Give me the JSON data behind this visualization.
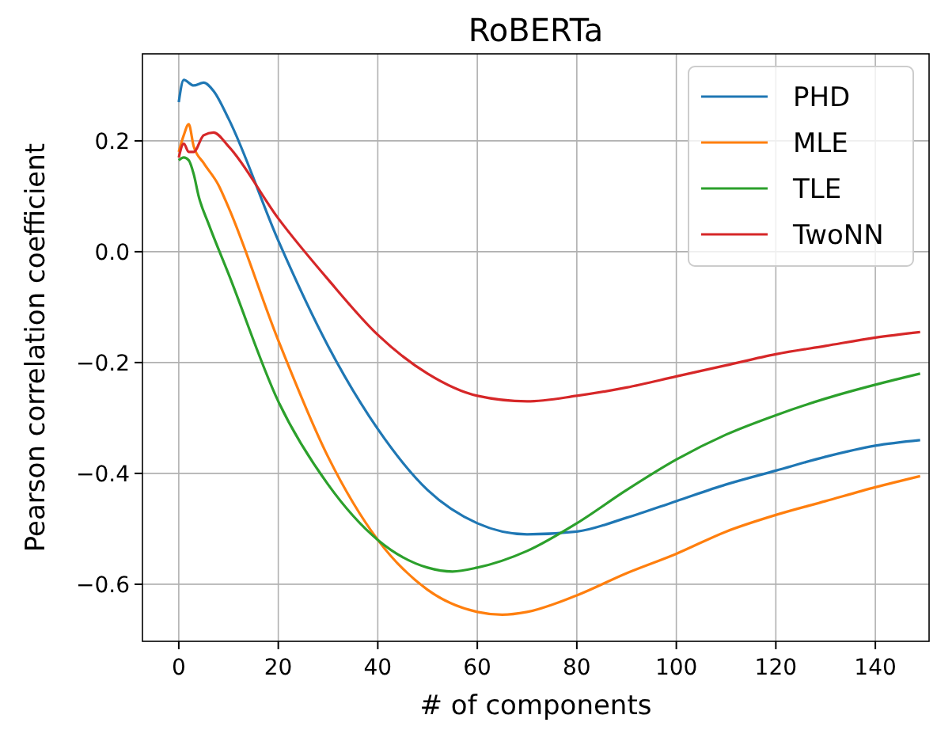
{
  "chart_data": {
    "type": "line",
    "title": "RoBERTa",
    "xlabel": "# of components",
    "ylabel": "Pearson correlation coefficient",
    "xlim": [
      -7.3,
      150.8
    ],
    "ylim": [
      -0.703,
      0.357
    ],
    "xticks": [
      0,
      20,
      40,
      60,
      80,
      100,
      120,
      140
    ],
    "yticks": [
      {
        "value": -0.6,
        "label": "−0.6"
      },
      {
        "value": -0.4,
        "label": "−0.4"
      },
      {
        "value": -0.2,
        "label": "−0.2"
      },
      {
        "value": 0,
        "label": "0.0"
      },
      {
        "value": 0.2,
        "label": "0.2"
      }
    ],
    "grid": true,
    "legend": "top right",
    "marker": "none",
    "line_style": "solid",
    "series": [
      {
        "name": "PHD",
        "color": "#1f77b4",
        "x": [
          0,
          1,
          3,
          5,
          7,
          10,
          20,
          30,
          40,
          50,
          60,
          70,
          80,
          90,
          100,
          110,
          120,
          130,
          140,
          149
        ],
        "values": [
          0.27,
          0.31,
          0.3,
          0.305,
          0.29,
          0.24,
          0.02,
          -0.17,
          -0.32,
          -0.43,
          -0.49,
          -0.51,
          -0.505,
          -0.48,
          -0.45,
          -0.42,
          -0.395,
          -0.37,
          -0.35,
          -0.34
        ]
      },
      {
        "name": "MLE",
        "color": "#ff7f0e",
        "x": [
          0,
          1,
          2,
          3,
          5,
          8,
          10,
          20,
          30,
          40,
          50,
          60,
          65,
          70,
          80,
          90,
          100,
          110,
          120,
          130,
          140,
          149
        ],
        "values": [
          0.18,
          0.21,
          0.23,
          0.19,
          0.16,
          0.12,
          0.08,
          -0.16,
          -0.37,
          -0.52,
          -0.61,
          -0.65,
          -0.655,
          -0.65,
          -0.62,
          -0.58,
          -0.545,
          -0.505,
          -0.475,
          -0.45,
          -0.425,
          -0.405
        ]
      },
      {
        "name": "TLE",
        "color": "#2ca02c",
        "x": [
          0,
          1,
          2,
          3,
          4,
          6,
          10,
          20,
          30,
          40,
          50,
          55,
          60,
          70,
          80,
          90,
          100,
          110,
          120,
          130,
          140,
          149
        ],
        "values": [
          0.165,
          0.17,
          0.165,
          0.14,
          0.1,
          0.05,
          -0.04,
          -0.27,
          -0.42,
          -0.52,
          -0.57,
          -0.577,
          -0.57,
          -0.54,
          -0.49,
          -0.43,
          -0.375,
          -0.33,
          -0.295,
          -0.265,
          -0.24,
          -0.22
        ]
      },
      {
        "name": "TwoNN",
        "color": "#d62728",
        "x": [
          0,
          1,
          2,
          3,
          5,
          7,
          10,
          20,
          30,
          40,
          50,
          60,
          70,
          80,
          90,
          100,
          110,
          120,
          130,
          140,
          149
        ],
        "values": [
          0.17,
          0.195,
          0.18,
          0.18,
          0.21,
          0.215,
          0.19,
          0.06,
          -0.05,
          -0.15,
          -0.22,
          -0.26,
          -0.27,
          -0.26,
          -0.245,
          -0.225,
          -0.205,
          -0.185,
          -0.17,
          -0.155,
          -0.145
        ]
      }
    ]
  }
}
